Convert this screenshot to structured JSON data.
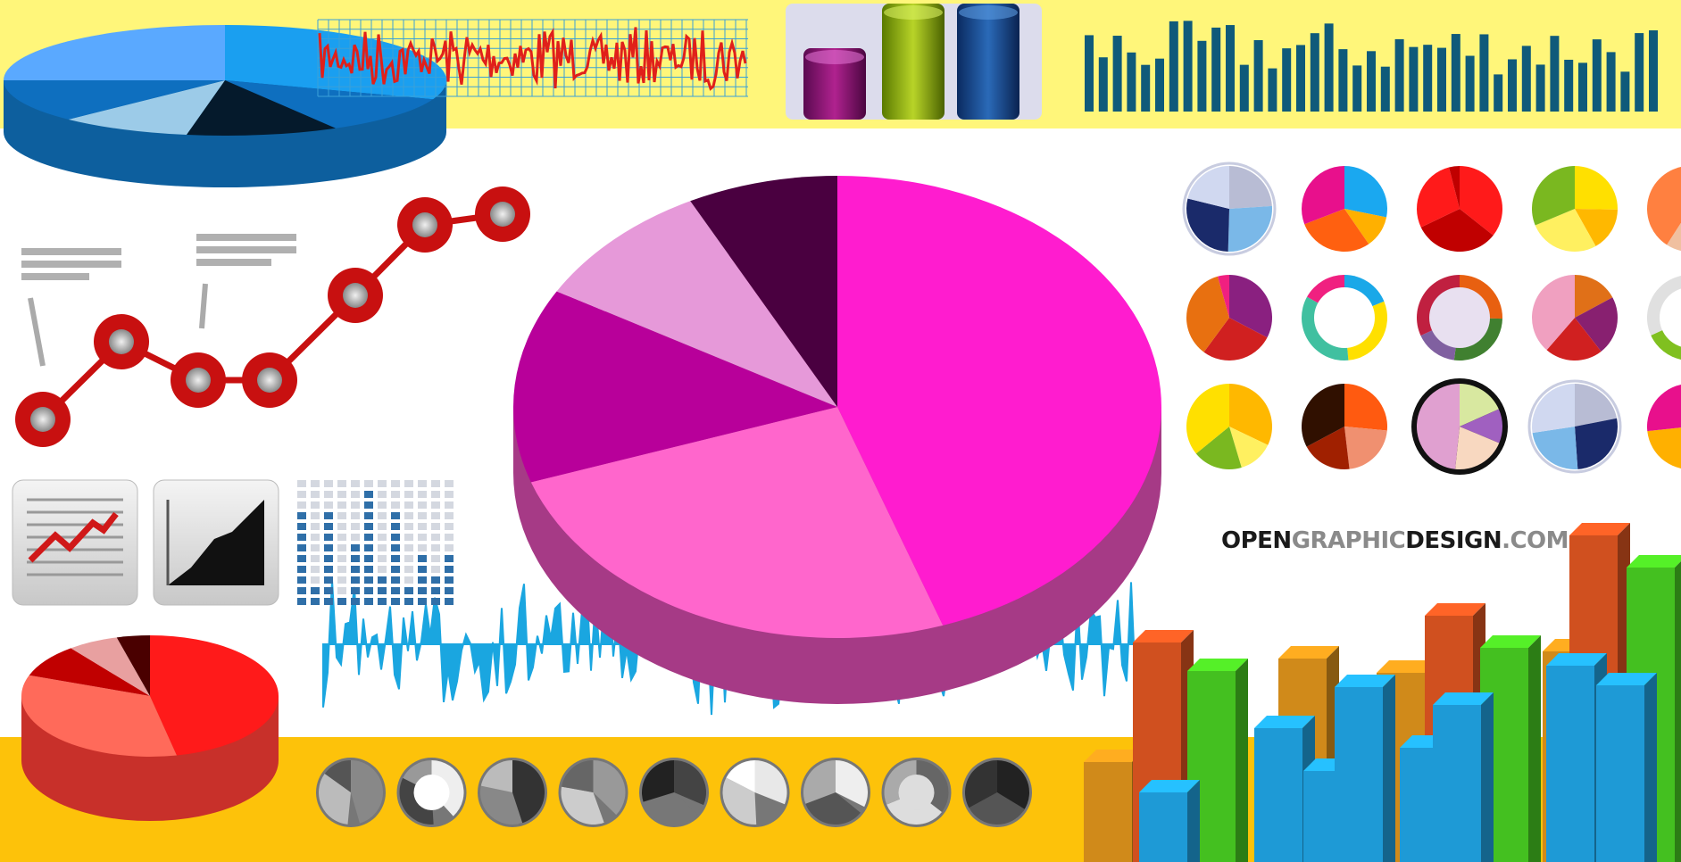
{
  "logo": {
    "parts": [
      "OPEN",
      "GRAPHIC",
      "DESIGN",
      ".COM"
    ]
  }
}
